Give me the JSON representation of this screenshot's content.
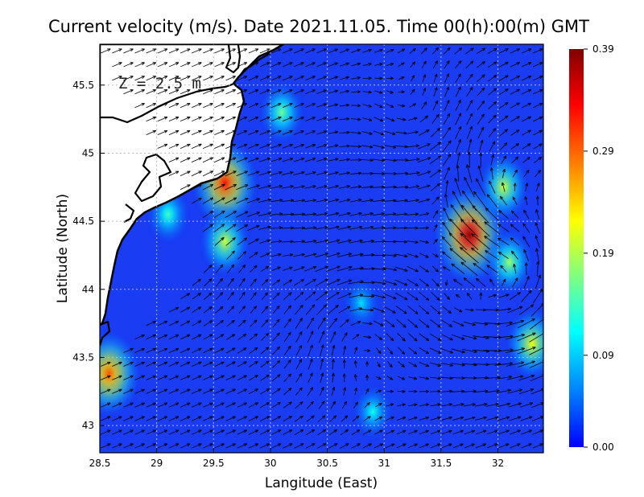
{
  "chart_data": {
    "type": "heatmap",
    "title": "Current velocity (m/s). Date 2021.11.05. Time 00(h):00(m) GMT",
    "xlabel": "Langitude (East)",
    "ylabel": "Latitude (North)",
    "depth_label": "Z = 2.5 m",
    "xlim": [
      28.5,
      32.4
    ],
    "ylim": [
      42.8,
      45.8
    ],
    "x_ticks": [
      {
        "value": 28.5,
        "label": "28.5"
      },
      {
        "value": 29,
        "label": "29"
      },
      {
        "value": 29.5,
        "label": "29.5"
      },
      {
        "value": 30,
        "label": "30"
      },
      {
        "value": 30.5,
        "label": "30.5"
      },
      {
        "value": 31,
        "label": "31"
      },
      {
        "value": 31.5,
        "label": "31.5"
      },
      {
        "value": 32,
        "label": "32"
      }
    ],
    "y_ticks": [
      {
        "value": 43,
        "label": "43"
      },
      {
        "value": 43.5,
        "label": "43.5"
      },
      {
        "value": 44,
        "label": "44"
      },
      {
        "value": 44.5,
        "label": "44.5"
      },
      {
        "value": 45,
        "label": "45"
      },
      {
        "value": 45.5,
        "label": "45.5"
      }
    ],
    "grid": true,
    "colorbar": {
      "min": 0.0,
      "max": 0.39,
      "ticks": [
        {
          "value": 0.0,
          "label": "0.00"
        },
        {
          "value": 0.09,
          "label": "0.09"
        },
        {
          "value": 0.19,
          "label": "0.19"
        },
        {
          "value": 0.29,
          "label": "0.29"
        },
        {
          "value": 0.39,
          "label": "0.39"
        }
      ],
      "colormap": [
        "#0000ff",
        "#0080ff",
        "#00ffff",
        "#80ff80",
        "#ffff00",
        "#ff8000",
        "#ff0000",
        "#800000"
      ]
    },
    "hotspots": [
      {
        "lon": 31.75,
        "lat": 44.4,
        "speed": 0.38
      },
      {
        "lon": 29.6,
        "lat": 44.78,
        "speed": 0.33
      },
      {
        "lon": 28.58,
        "lat": 43.38,
        "speed": 0.3
      },
      {
        "lon": 32.3,
        "lat": 43.6,
        "speed": 0.22
      },
      {
        "lon": 29.6,
        "lat": 44.35,
        "speed": 0.2
      },
      {
        "lon": 29.1,
        "lat": 44.55,
        "speed": 0.14
      },
      {
        "lon": 30.1,
        "lat": 45.3,
        "speed": 0.16
      },
      {
        "lon": 30.9,
        "lat": 43.1,
        "speed": 0.12
      },
      {
        "lon": 32.1,
        "lat": 44.2,
        "speed": 0.18
      },
      {
        "lon": 30.8,
        "lat": 43.9,
        "speed": 0.1
      },
      {
        "lon": 32.05,
        "lat": 44.75,
        "speed": 0.2
      }
    ],
    "vectors": "current-field"
  }
}
